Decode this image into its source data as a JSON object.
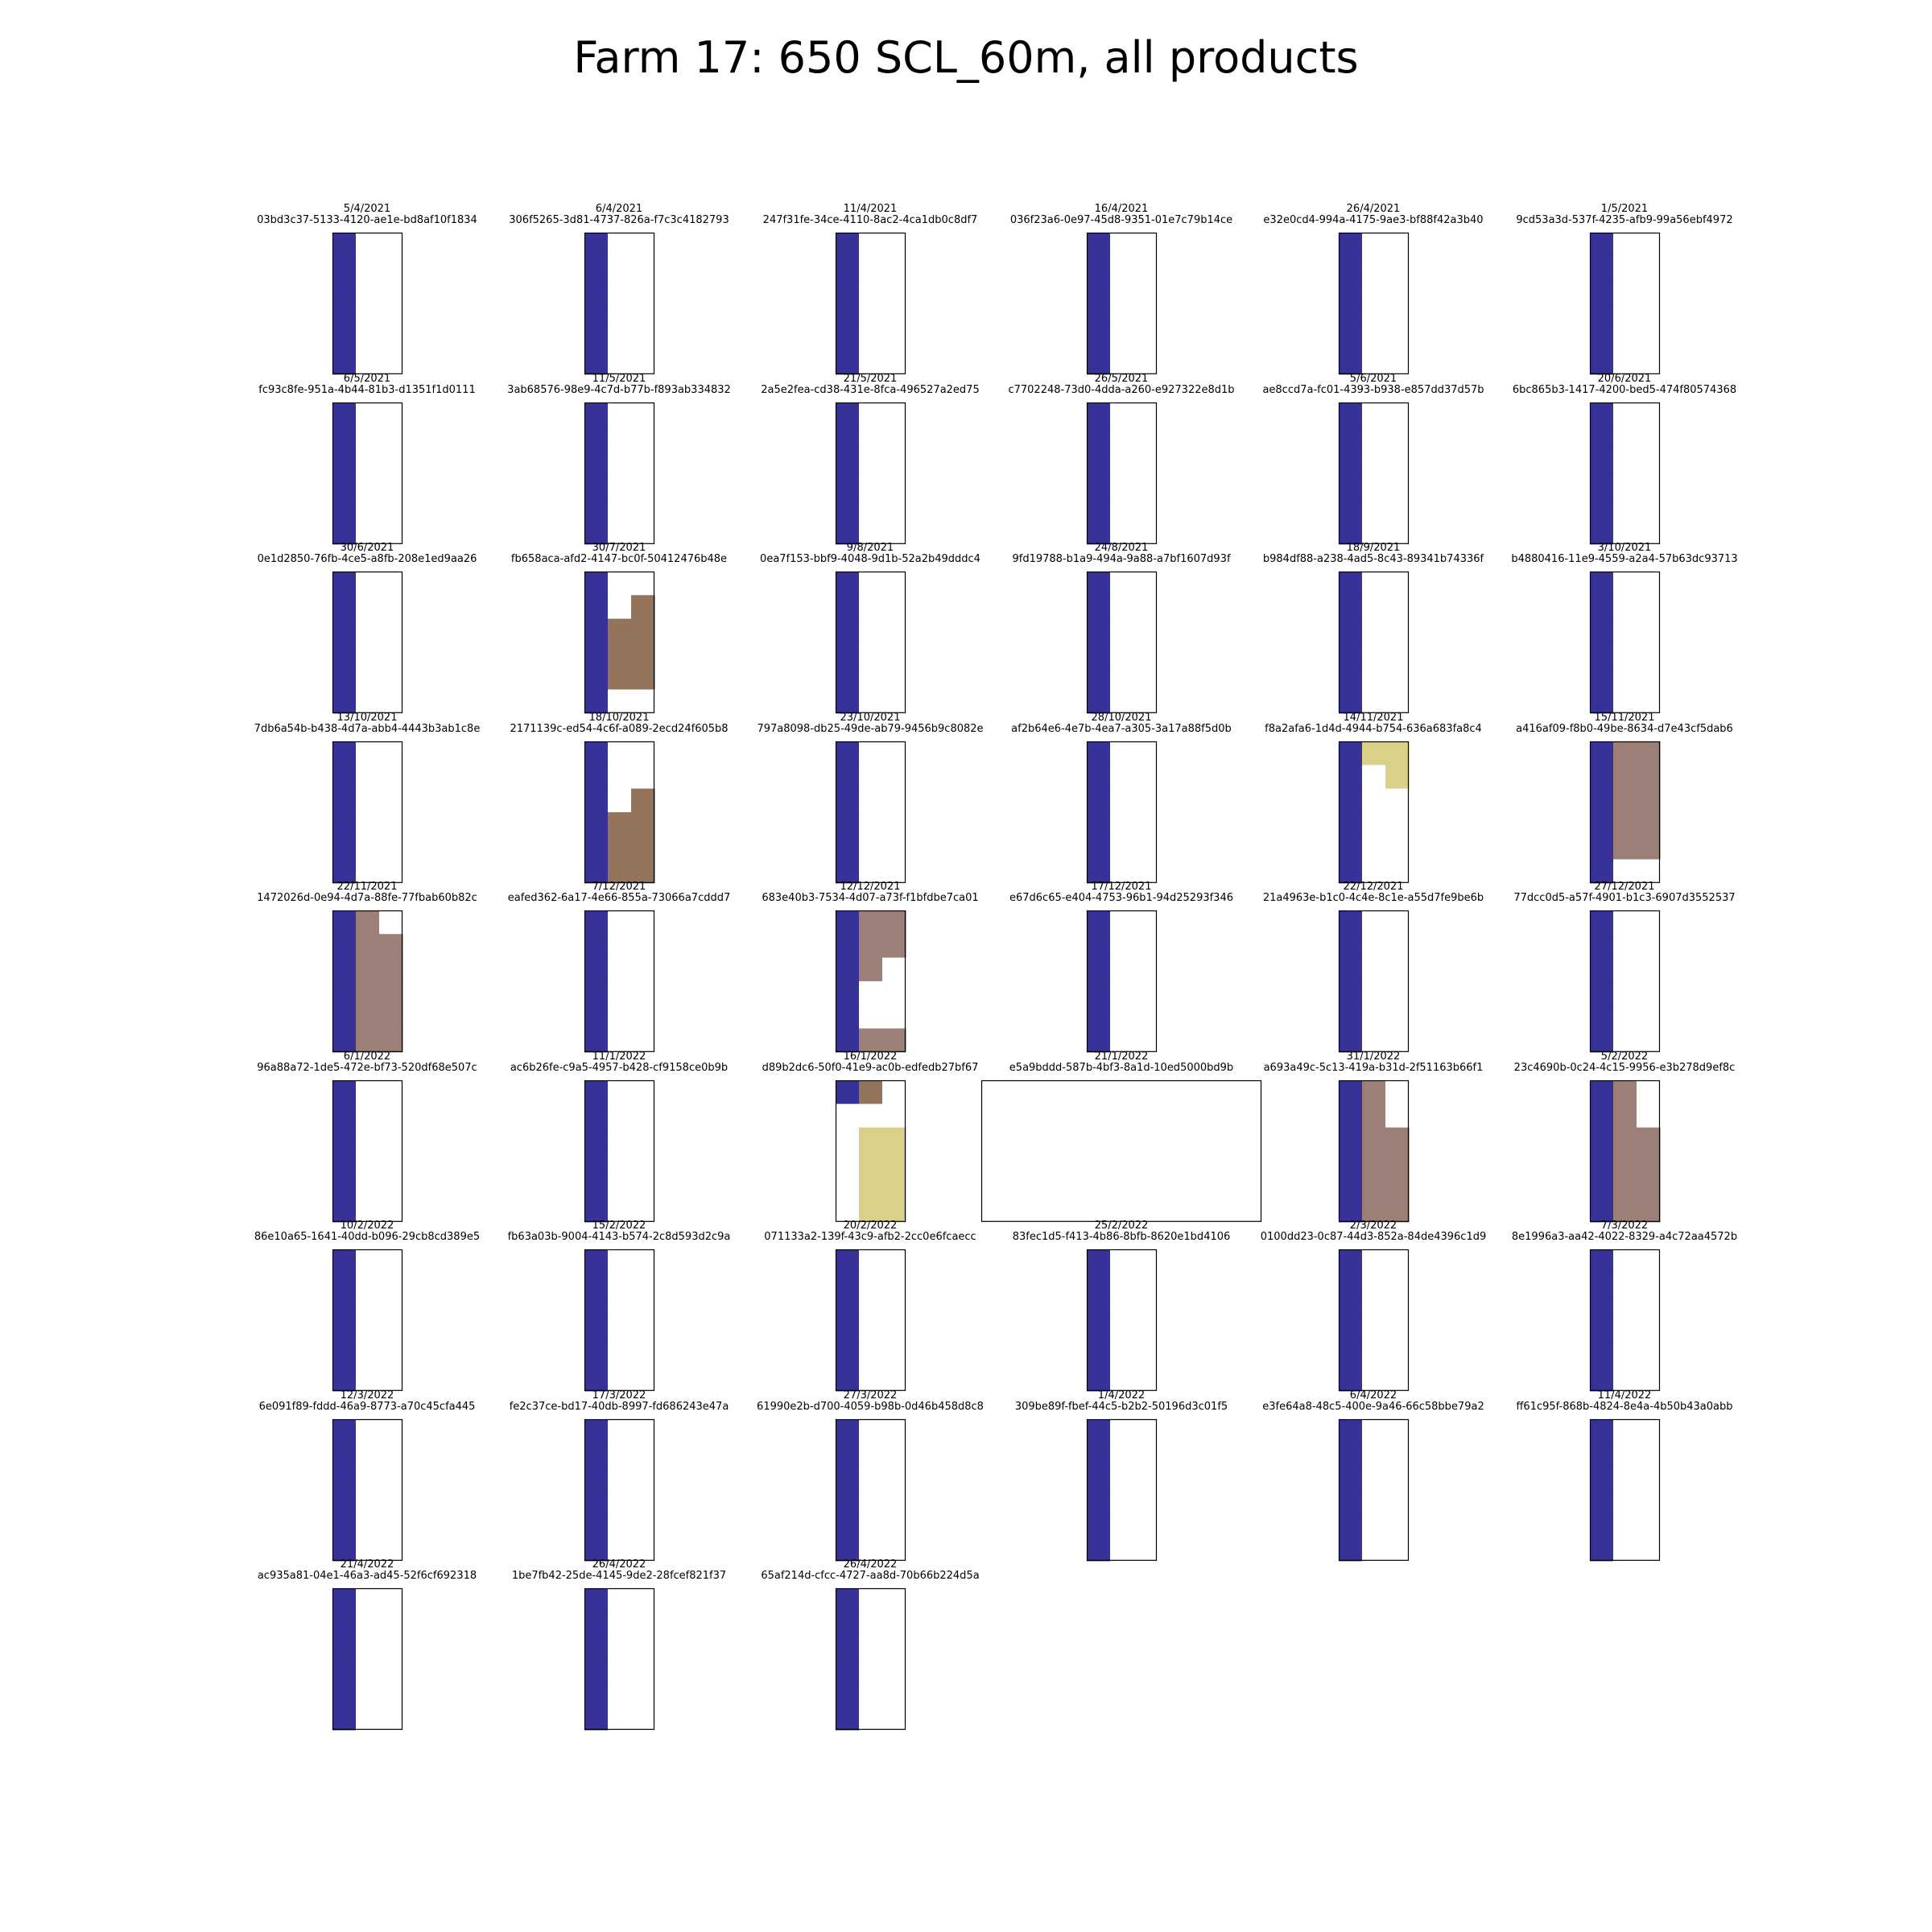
{
  "title": "Farm 17: 650 SCL_60m, all products",
  "colors": {
    "blue": "#373297",
    "brown": "#93745a",
    "taupe": "#9c8078",
    "khaki": "#dbd087",
    "white": "#ffffff",
    "frame": "#000000"
  },
  "chart_data": {
    "type": "heatmap",
    "grid": false,
    "panel_grid_columns": 6,
    "raster_size": {
      "rows": 6,
      "cols": 3
    },
    "panels": [
      {
        "date": "5/4/2021",
        "id": "03bd3c37-5133-4120-ae1e-bd8af10f1834",
        "rows": [
          "bww",
          "bww",
          "bww",
          "bww",
          "bww",
          "bww"
        ]
      },
      {
        "date": "6/4/2021",
        "id": "306f5265-3d81-4737-826a-f7c3c4182793",
        "rows": [
          "bww",
          "bww",
          "bww",
          "bww",
          "bww",
          "bww"
        ]
      },
      {
        "date": "11/4/2021",
        "id": "247f31fe-34ce-4110-8ac2-4ca1db0c8df7",
        "rows": [
          "bww",
          "bww",
          "bww",
          "bww",
          "bww",
          "bww"
        ]
      },
      {
        "date": "16/4/2021",
        "id": "036f23a6-0e97-45d8-9351-01e7c79b14ce",
        "rows": [
          "bww",
          "bww",
          "bww",
          "bww",
          "bww",
          "bww"
        ]
      },
      {
        "date": "26/4/2021",
        "id": "e32e0cd4-994a-4175-9ae3-bf88f42a3b40",
        "rows": [
          "bww",
          "bww",
          "bww",
          "bww",
          "bww",
          "bww"
        ]
      },
      {
        "date": "1/5/2021",
        "id": "9cd53a3d-537f-4235-afb9-99a56ebf4972",
        "rows": [
          "bww",
          "bww",
          "bww",
          "bww",
          "bww",
          "bww"
        ]
      },
      {
        "date": "6/5/2021",
        "id": "fc93c8fe-951a-4b44-81b3-d1351f1d0111",
        "rows": [
          "bww",
          "bww",
          "bww",
          "bww",
          "bww",
          "bww"
        ]
      },
      {
        "date": "11/5/2021",
        "id": "3ab68576-98e9-4c7d-b77b-f893ab334832",
        "rows": [
          "bww",
          "bww",
          "bww",
          "bww",
          "bww",
          "bww"
        ]
      },
      {
        "date": "21/5/2021",
        "id": "2a5e2fea-cd38-431e-8fca-496527a2ed75",
        "rows": [
          "bww",
          "bww",
          "bww",
          "bww",
          "bww",
          "bww"
        ]
      },
      {
        "date": "26/5/2021",
        "id": "c7702248-73d0-4dda-a260-e927322e8d1b",
        "rows": [
          "bww",
          "bww",
          "bww",
          "bww",
          "bww",
          "bww"
        ]
      },
      {
        "date": "5/6/2021",
        "id": "ae8ccd7a-fc01-4393-b938-e857dd37d57b",
        "rows": [
          "bww",
          "bww",
          "bww",
          "bww",
          "bww",
          "bww"
        ]
      },
      {
        "date": "20/6/2021",
        "id": "6bc865b3-1417-4200-bed5-474f80574368",
        "rows": [
          "bww",
          "bww",
          "bww",
          "bww",
          "bww",
          "bww"
        ]
      },
      {
        "date": "30/6/2021",
        "id": "0e1d2850-76fb-4ce5-a8fb-208e1ed9aa26",
        "rows": [
          "bww",
          "bww",
          "bww",
          "bww",
          "bww",
          "bww"
        ]
      },
      {
        "date": "30/7/2021",
        "id": "fb658aca-afd2-4147-bc0f-50412476b48e",
        "rows": [
          "bww",
          "bwr",
          "brr",
          "brr",
          "brr",
          "bww"
        ]
      },
      {
        "date": "9/8/2021",
        "id": "0ea7f153-bbf9-4048-9d1b-52a2b49dddc4",
        "rows": [
          "bww",
          "bww",
          "bww",
          "bww",
          "bww",
          "bww"
        ]
      },
      {
        "date": "24/8/2021",
        "id": "9fd19788-b1a9-494a-9a88-a7bf1607d93f",
        "rows": [
          "bww",
          "bww",
          "bww",
          "bww",
          "bww",
          "bww"
        ]
      },
      {
        "date": "18/9/2021",
        "id": "b984df88-a238-4ad5-8c43-89341b74336f",
        "rows": [
          "bww",
          "bww",
          "bww",
          "bww",
          "bww",
          "bww"
        ]
      },
      {
        "date": "3/10/2021",
        "id": "b4880416-11e9-4559-a2a4-57b63dc93713",
        "rows": [
          "bww",
          "bww",
          "bww",
          "bww",
          "bww",
          "bww"
        ]
      },
      {
        "date": "13/10/2021",
        "id": "7db6a54b-b438-4d7a-abb4-4443b3ab1c8e",
        "rows": [
          "bww",
          "bww",
          "bww",
          "bww",
          "bww",
          "bww"
        ]
      },
      {
        "date": "18/10/2021",
        "id": "2171139c-ed54-4c6f-a089-2ecd24f605b8",
        "rows": [
          "bww",
          "bww",
          "bwr",
          "brr",
          "brr",
          "brr"
        ]
      },
      {
        "date": "23/10/2021",
        "id": "797a8098-db25-49de-ab79-9456b9c8082e",
        "rows": [
          "bww",
          "bww",
          "bww",
          "bww",
          "bww",
          "bww"
        ]
      },
      {
        "date": "28/10/2021",
        "id": "af2b64e6-4e7b-4ea7-a305-3a17a88f5d0b",
        "rows": [
          "bww",
          "bww",
          "bww",
          "bww",
          "bww",
          "bww"
        ]
      },
      {
        "date": "14/11/2021",
        "id": "f8a2afa6-1d4d-4944-b754-636a683fa8c4",
        "rows": [
          "bkk",
          "bwk",
          "bww",
          "bww",
          "bww",
          "bww"
        ]
      },
      {
        "date": "15/11/2021",
        "id": "a416af09-f8b0-49be-8634-d7e43cf5dab6",
        "rows": [
          "btt",
          "btt",
          "btt",
          "btt",
          "btt",
          "bww"
        ]
      },
      {
        "date": "22/11/2021",
        "id": "1472026d-0e94-4d7a-88fe-77fbab60b82c",
        "rows": [
          "btw",
          "btt",
          "btt",
          "btt",
          "btt",
          "btt"
        ]
      },
      {
        "date": "7/12/2021",
        "id": "eafed362-6a17-4e66-855a-73066a7cddd7",
        "rows": [
          "bww",
          "bww",
          "bww",
          "bww",
          "bww",
          "bww"
        ]
      },
      {
        "date": "12/12/2021",
        "id": "683e40b3-7534-4d07-a73f-f1bfdbe7ca01",
        "rows": [
          "btt",
          "btt",
          "btw",
          "bww",
          "bww",
          "btt"
        ]
      },
      {
        "date": "17/12/2021",
        "id": "e67d6c65-e404-4753-96b1-94d25293f346",
        "rows": [
          "bww",
          "bww",
          "bww",
          "bww",
          "bww",
          "bww"
        ]
      },
      {
        "date": "22/12/2021",
        "id": "21a4963e-b1c0-4c4e-8c1e-a55d7fe9be6b",
        "rows": [
          "bww",
          "bww",
          "bww",
          "bww",
          "bww",
          "bww"
        ]
      },
      {
        "date": "27/12/2021",
        "id": "77dcc0d5-a57f-4901-b1c3-6907d3552537",
        "rows": [
          "bww",
          "bww",
          "bww",
          "bww",
          "bww",
          "bww"
        ]
      },
      {
        "date": "6/1/2022",
        "id": "96a88a72-1de5-472e-bf73-520df68e507c",
        "rows": [
          "bww",
          "bww",
          "bww",
          "bww",
          "bww",
          "bww"
        ]
      },
      {
        "date": "11/1/2022",
        "id": "ac6b26fe-c9a5-4957-b428-cf9158ce0b9b",
        "rows": [
          "bww",
          "bww",
          "bww",
          "bww",
          "bww",
          "bww"
        ]
      },
      {
        "date": "16/1/2022",
        "id": "d89b2dc6-50f0-41e9-ac0b-edfedb27bf67",
        "rows": [
          "brw",
          "www",
          "wkk",
          "wkk",
          "wkk",
          "wkk"
        ]
      },
      {
        "date": "21/1/2022",
        "id": "e5a9bddd-587b-4bf3-8a1d-10ed5000bd9b",
        "wide": true,
        "rows": [
          "wwwwwwwwwwww",
          "wwwwwwwwwwww",
          "wwwwwwwwwwww",
          "wwwwwwwwwwww",
          "wwwwwwwwwwww",
          "wwwwwwwwwwww"
        ]
      },
      {
        "date": "31/1/2022",
        "id": "a693a49c-5c13-419a-b31d-2f51163b66f1",
        "rows": [
          "btw",
          "btw",
          "btt",
          "btt",
          "btt",
          "btt"
        ]
      },
      {
        "date": "5/2/2022",
        "id": "23c4690b-0c24-4c15-9956-e3b278d9ef8c",
        "rows": [
          "btw",
          "btw",
          "btt",
          "btt",
          "btt",
          "btt"
        ]
      },
      {
        "date": "10/2/2022",
        "id": "86e10a65-1641-40dd-b096-29cb8cd389e5",
        "rows": [
          "bww",
          "bww",
          "bww",
          "bww",
          "bww",
          "bww"
        ]
      },
      {
        "date": "15/2/2022",
        "id": "fb63a03b-9004-4143-b574-2c8d593d2c9a",
        "rows": [
          "bww",
          "bww",
          "bww",
          "bww",
          "bww",
          "bww"
        ]
      },
      {
        "date": "20/2/2022",
        "id": "071133a2-139f-43c9-afb2-2cc0e6fcaecc",
        "rows": [
          "bww",
          "bww",
          "bww",
          "bww",
          "bww",
          "bww"
        ]
      },
      {
        "date": "25/2/2022",
        "id": "83fec1d5-f413-4b86-8bfb-8620e1bd4106",
        "rows": [
          "bww",
          "bww",
          "bww",
          "bww",
          "bww",
          "bww"
        ]
      },
      {
        "date": "2/3/2022",
        "id": "0100dd23-0c87-44d3-852a-84de4396c1d9",
        "rows": [
          "bww",
          "bww",
          "bww",
          "bww",
          "bww",
          "bww"
        ]
      },
      {
        "date": "7/3/2022",
        "id": "8e1996a3-aa42-4022-8329-a4c72aa4572b",
        "rows": [
          "bww",
          "bww",
          "bww",
          "bww",
          "bww",
          "bww"
        ]
      },
      {
        "date": "12/3/2022",
        "id": "6e091f89-fddd-46a9-8773-a70c45cfa445",
        "rows": [
          "bww",
          "bww",
          "bww",
          "bww",
          "bww",
          "bww"
        ]
      },
      {
        "date": "17/3/2022",
        "id": "fe2c37ce-bd17-40db-8997-fd686243e47a",
        "rows": [
          "bww",
          "bww",
          "bww",
          "bww",
          "bww",
          "bww"
        ]
      },
      {
        "date": "27/3/2022",
        "id": "61990e2b-d700-4059-b98b-0d46b458d8c8",
        "rows": [
          "bww",
          "bww",
          "bww",
          "bww",
          "bww",
          "bww"
        ]
      },
      {
        "date": "1/4/2022",
        "id": "309be89f-fbef-44c5-b2b2-50196d3c01f5",
        "rows": [
          "bww",
          "bww",
          "bww",
          "bww",
          "bww",
          "bww"
        ]
      },
      {
        "date": "6/4/2022",
        "id": "e3fe64a8-48c5-400e-9a46-66c58bbe79a2",
        "rows": [
          "bww",
          "bww",
          "bww",
          "bww",
          "bww",
          "bww"
        ]
      },
      {
        "date": "11/4/2022",
        "id": "ff61c95f-868b-4824-8e4a-4b50b43a0abb",
        "rows": [
          "bww",
          "bww",
          "bww",
          "bww",
          "bww",
          "bww"
        ]
      },
      {
        "date": "21/4/2022",
        "id": "ac935a81-04e1-46a3-ad45-52f6cf692318",
        "rows": [
          "bww",
          "bww",
          "bww",
          "bww",
          "bww",
          "bww"
        ]
      },
      {
        "date": "26/4/2022",
        "id": "1be7fb42-25de-4145-9de2-28fcef821f37",
        "rows": [
          "bww",
          "bww",
          "bww",
          "bww",
          "bww",
          "bww"
        ]
      },
      {
        "date": "26/4/2022",
        "id": "65af214d-cfcc-4727-aa8d-70b66b224d5a",
        "rows": [
          "bww",
          "bww",
          "bww",
          "bww",
          "bww",
          "bww"
        ]
      }
    ]
  }
}
